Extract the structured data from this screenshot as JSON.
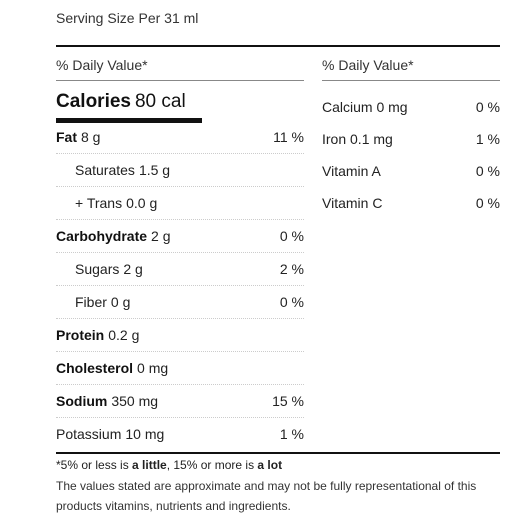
{
  "serving_size": "Serving Size Per 31 ml",
  "left": {
    "header": "% Daily Value*",
    "calories": {
      "label": "Calories",
      "value": "80 cal"
    },
    "rows": [
      {
        "name": "Fat",
        "amount": "8 g",
        "percent": "11 %",
        "bold": true,
        "indent": false
      },
      {
        "name": "Saturates",
        "amount": "1.5 g",
        "percent": "",
        "bold": false,
        "indent": true
      },
      {
        "name": "+ Trans",
        "amount": "0.0 g",
        "percent": "",
        "bold": false,
        "indent": true
      },
      {
        "name": "Carbohydrate",
        "amount": "2 g",
        "percent": "0 %",
        "bold": true,
        "indent": false
      },
      {
        "name": "Sugars",
        "amount": "2 g",
        "percent": "2 %",
        "bold": false,
        "indent": true
      },
      {
        "name": "Fiber",
        "amount": "0 g",
        "percent": "0 %",
        "bold": false,
        "indent": true
      },
      {
        "name": "Protein",
        "amount": "0.2 g",
        "percent": "",
        "bold": true,
        "indent": false
      },
      {
        "name": "Cholesterol",
        "amount": "0 mg",
        "percent": "",
        "bold": true,
        "indent": false
      },
      {
        "name": "Sodium",
        "amount": "350 mg",
        "percent": "15 %",
        "bold": true,
        "indent": false
      },
      {
        "name": "Potassium",
        "amount": "10 mg",
        "percent": "1 %",
        "bold": false,
        "indent": false
      }
    ]
  },
  "right": {
    "header": "% Daily Value*",
    "rows": [
      {
        "name": "Calcium 0 mg",
        "percent": "0 %"
      },
      {
        "name": "Iron 0.1 mg",
        "percent": "1 %"
      },
      {
        "name": "Vitamin A",
        "percent": "0 %"
      },
      {
        "name": "Vitamin C",
        "percent": "0 %"
      }
    ]
  },
  "footnote": {
    "prefix": "*5% or less is ",
    "little": "a little",
    "middle": ", 15% or more is ",
    "lot": "a lot",
    "disclaimer": "The values stated are approximate and may not be fully representational of this products vitamins, nutrients and ingredients."
  }
}
